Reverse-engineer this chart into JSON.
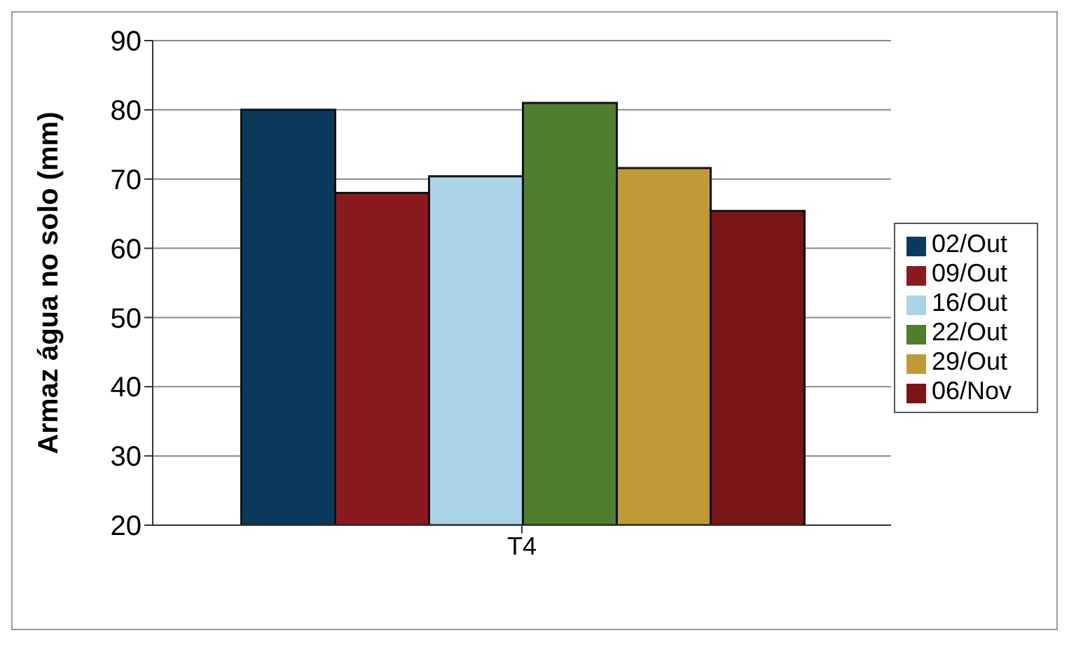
{
  "chart_data": {
    "type": "bar",
    "ylabel": "Armaz água no solo (mm)",
    "categories": [
      "T4"
    ],
    "series": [
      {
        "name": "02/Out",
        "color": "#0d3a5c",
        "values": [
          80
        ]
      },
      {
        "name": "09/Out",
        "color": "#8b1a1e",
        "values": [
          68
        ]
      },
      {
        "name": "16/Out",
        "color": "#a9d4e8",
        "values": [
          70.4
        ]
      },
      {
        "name": "22/Out",
        "color": "#4f7f2e",
        "values": [
          81
        ]
      },
      {
        "name": "29/Out",
        "color": "#c09a36",
        "values": [
          71.6
        ]
      },
      {
        "name": "06/Nov",
        "color": "#7a1515",
        "values": [
          65.4
        ]
      }
    ],
    "ylim": [
      20,
      90
    ],
    "yticks": [
      20,
      30,
      40,
      50,
      60,
      70,
      80,
      90
    ],
    "grid": "y",
    "legend": "right"
  }
}
